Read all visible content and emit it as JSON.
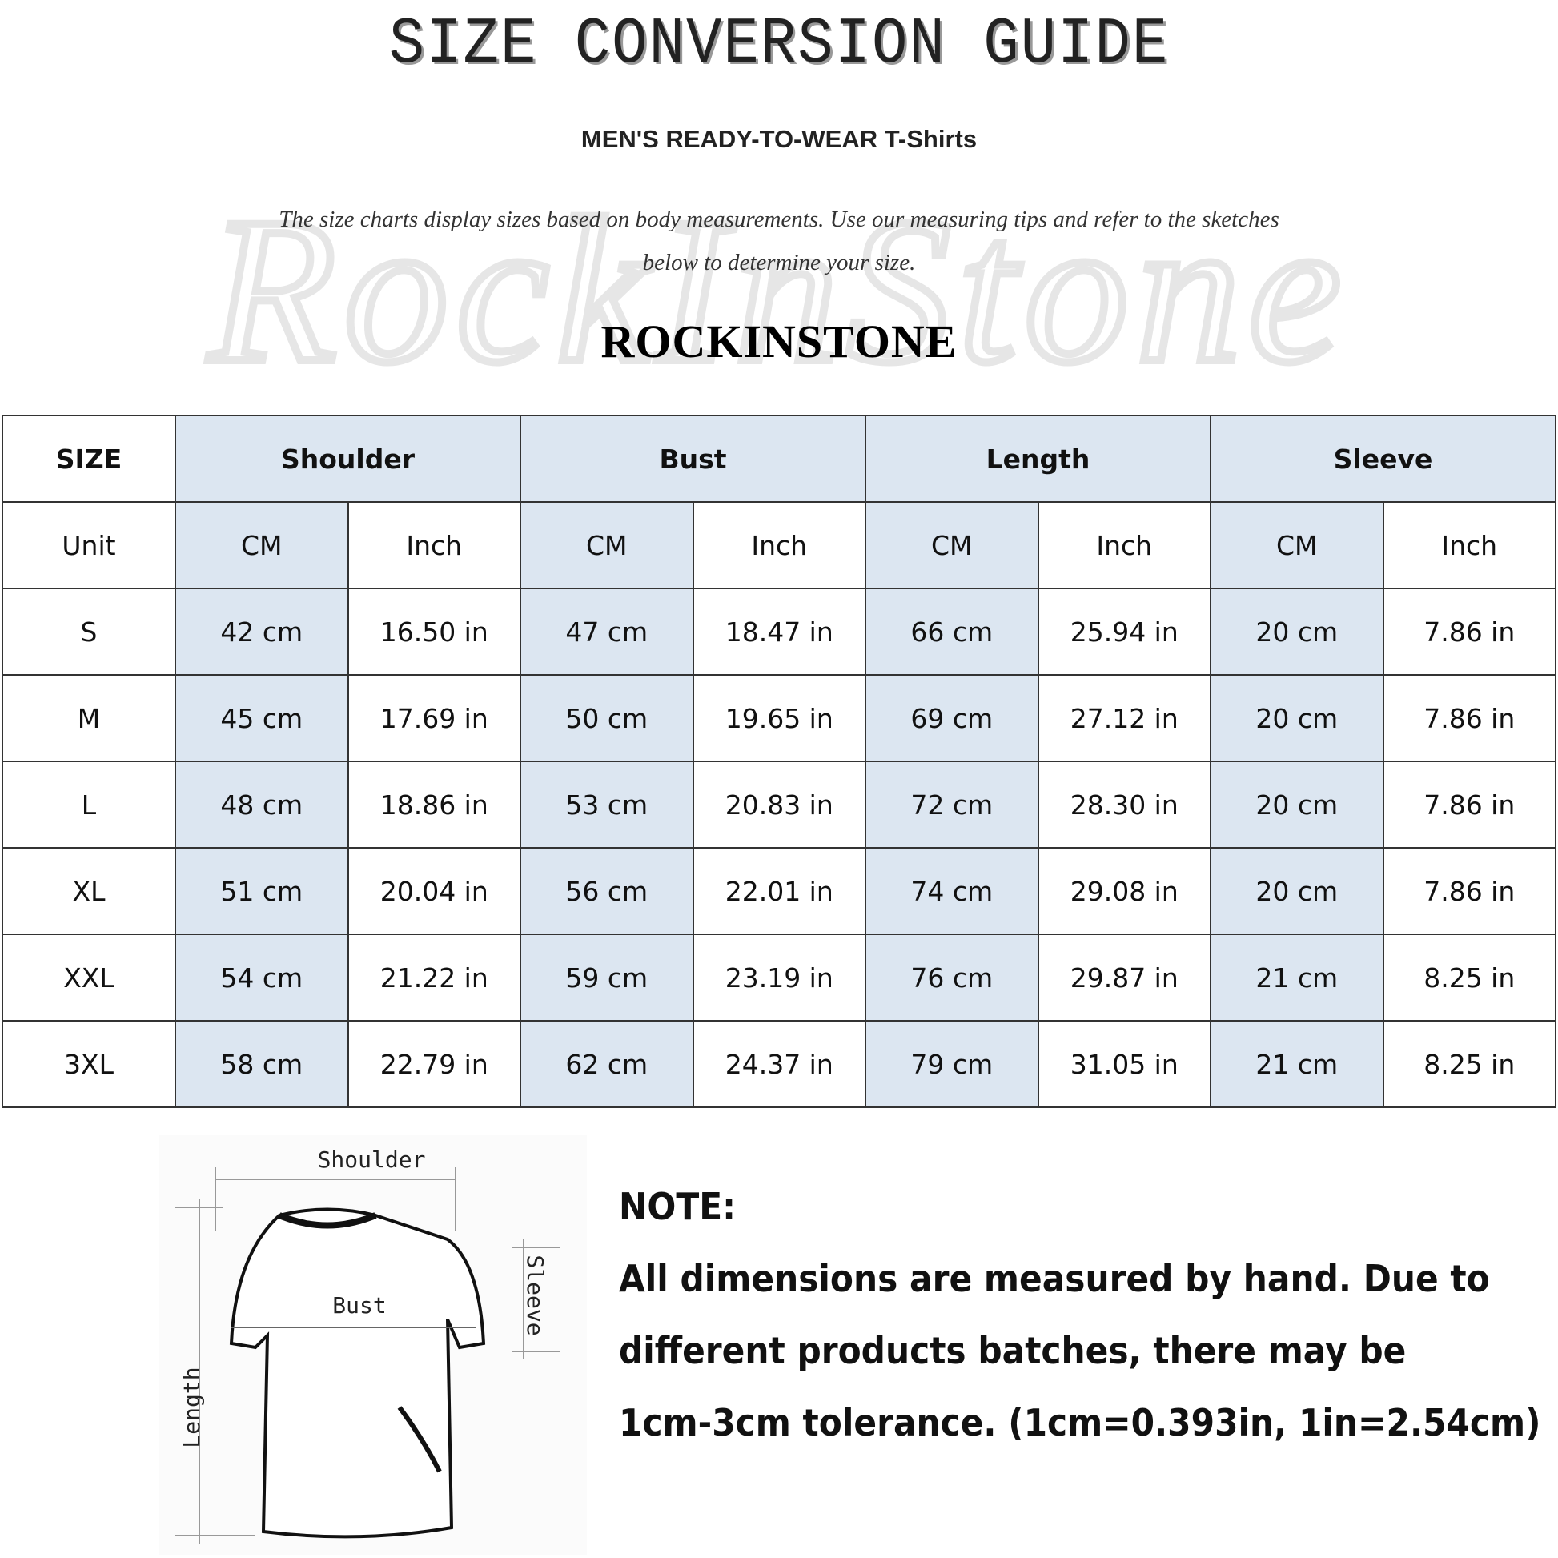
{
  "header": {
    "title": "SIZE CONVERSION GUIDE",
    "subtitle": "MEN'S READY-TO-WEAR T-Shirts",
    "intro_line1": "The size charts display sizes based on body measurements. Use our measuring tips and refer to the sketches",
    "intro_line2": "below to determine your size.",
    "brand": "ROCKINSTONE",
    "watermark": "Rock In Stone"
  },
  "colors": {
    "header_fill": "#dce6f1",
    "border": "#333333"
  },
  "table": {
    "size_label": "SIZE",
    "groups": [
      "Shoulder",
      "Bust",
      "Length",
      "Sleeve"
    ],
    "unit_label": "Unit",
    "units": [
      "CM",
      "Inch",
      "CM",
      "Inch",
      "CM",
      "Inch",
      "CM",
      "Inch"
    ],
    "rows": [
      {
        "size": "S",
        "cells": [
          "42 cm",
          "16.50 in",
          "47 cm",
          "18.47  in",
          "66 cm",
          "25.94  in",
          "20 cm",
          "7.86  in"
        ]
      },
      {
        "size": "M",
        "cells": [
          "45 cm",
          "17.69  in",
          "50 cm",
          "19.65  in",
          "69 cm",
          "27.12  in",
          "20 cm",
          "7.86  in"
        ]
      },
      {
        "size": "L",
        "cells": [
          "48 cm",
          "18.86  in",
          "53 cm",
          "20.83  in",
          "72 cm",
          "28.30  in",
          "20 cm",
          "7.86  in"
        ]
      },
      {
        "size": "XL",
        "cells": [
          "51 cm",
          "20.04  in",
          "56 cm",
          "22.01  in",
          "74 cm",
          "29.08  in",
          "20 cm",
          "7.86  in"
        ]
      },
      {
        "size": "XXL",
        "cells": [
          "54 cm",
          "21.22  in",
          "59 cm",
          "23.19  in",
          "76 cm",
          "29.87  in",
          "21 cm",
          "8.25  in"
        ]
      },
      {
        "size": "3XL",
        "cells": [
          "58 cm",
          "22.79  in",
          "62 cm",
          "24.37  in",
          "79 cm",
          "31.05  in",
          "21 cm",
          "8.25  in"
        ]
      }
    ]
  },
  "sketch": {
    "shoulder": "Shoulder",
    "bust": "Bust",
    "length": "Length",
    "sleeve": "Sleeve"
  },
  "note": {
    "heading": "NOTE:",
    "lines": [
      "All dimensions are measured by hand. Due to",
      "different products batches, there may be",
      "1cm-3cm tolerance. (1cm=0.393in, 1in=2.54cm)"
    ]
  }
}
